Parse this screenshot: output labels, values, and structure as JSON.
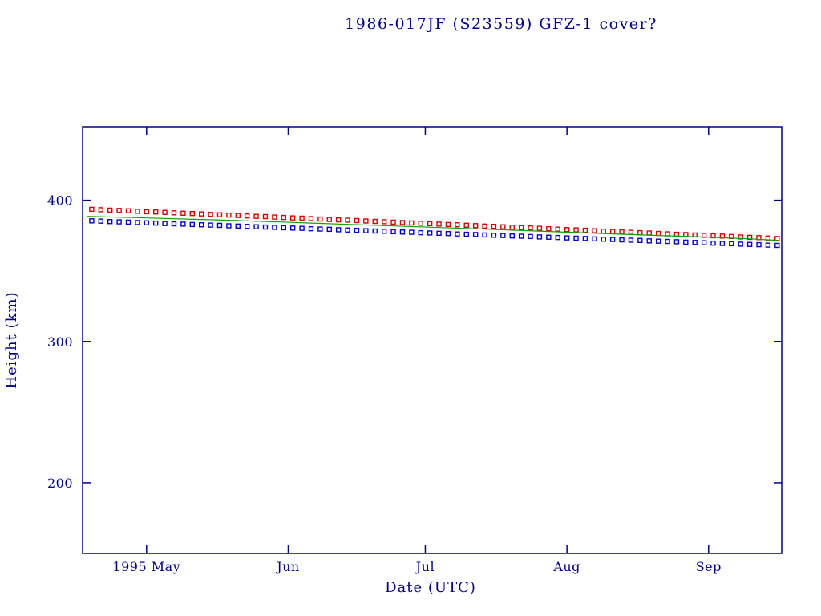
{
  "page": {
    "background": "#ffffff"
  },
  "chart_data": {
    "type": "scatter",
    "title": "1986-017JF (S23559) GFZ-1 cover?",
    "xlabel": "Date (UTC)",
    "ylabel": "Height (km)",
    "x_unit": "days since 1995-04-17",
    "xlim": [
      0,
      153
    ],
    "ylim": [
      150,
      452
    ],
    "grid": false,
    "legend": false,
    "frame_color": "#00008b",
    "text_color": "#00008b",
    "x_ticks": [
      {
        "v": 14,
        "label": "1995 May"
      },
      {
        "v": 45,
        "label": "Jun"
      },
      {
        "v": 75,
        "label": "Jul"
      },
      {
        "v": 106,
        "label": "Aug"
      },
      {
        "v": 137,
        "label": "Sep"
      }
    ],
    "y_ticks": [
      {
        "v": 200,
        "label": "200"
      },
      {
        "v": 300,
        "label": "300"
      },
      {
        "v": 400,
        "label": "400"
      }
    ],
    "series": [
      {
        "name": "red-squares-upper-height",
        "style": "scatter",
        "marker": "square",
        "color": "#dd0000",
        "points": [
          [
            2,
            393.6
          ],
          [
            4,
            393.3
          ],
          [
            6,
            393.0
          ],
          [
            8,
            392.8
          ],
          [
            10,
            392.5
          ],
          [
            12,
            392.2
          ],
          [
            14,
            391.9
          ],
          [
            16,
            391.7
          ],
          [
            18,
            391.4
          ],
          [
            20,
            391.1
          ],
          [
            22,
            390.8
          ],
          [
            24,
            390.6
          ],
          [
            26,
            390.3
          ],
          [
            28,
            390.0
          ],
          [
            30,
            389.7
          ],
          [
            32,
            389.5
          ],
          [
            34,
            389.2
          ],
          [
            36,
            388.9
          ],
          [
            38,
            388.6
          ],
          [
            40,
            388.4
          ],
          [
            42,
            388.1
          ],
          [
            44,
            387.8
          ],
          [
            46,
            387.5
          ],
          [
            48,
            387.3
          ],
          [
            50,
            387.0
          ],
          [
            52,
            386.7
          ],
          [
            54,
            386.4
          ],
          [
            56,
            386.1
          ],
          [
            58,
            385.9
          ],
          [
            60,
            385.6
          ],
          [
            62,
            385.3
          ],
          [
            64,
            385.0
          ],
          [
            66,
            384.8
          ],
          [
            68,
            384.5
          ],
          [
            70,
            384.2
          ],
          [
            72,
            383.9
          ],
          [
            74,
            383.7
          ],
          [
            76,
            383.4
          ],
          [
            78,
            383.1
          ],
          [
            80,
            382.8
          ],
          [
            82,
            382.6
          ],
          [
            84,
            382.3
          ],
          [
            86,
            382.0
          ],
          [
            88,
            381.7
          ],
          [
            90,
            381.5
          ],
          [
            92,
            381.2
          ],
          [
            94,
            380.9
          ],
          [
            96,
            380.6
          ],
          [
            98,
            380.4
          ],
          [
            100,
            380.1
          ],
          [
            102,
            379.8
          ],
          [
            104,
            379.5
          ],
          [
            106,
            379.2
          ],
          [
            108,
            379.0
          ],
          [
            110,
            378.7
          ],
          [
            112,
            378.4
          ],
          [
            114,
            378.1
          ],
          [
            116,
            377.9
          ],
          [
            118,
            377.6
          ],
          [
            120,
            377.3
          ],
          [
            122,
            377.0
          ],
          [
            124,
            376.8
          ],
          [
            126,
            376.5
          ],
          [
            128,
            376.2
          ],
          [
            130,
            375.9
          ],
          [
            132,
            375.7
          ],
          [
            134,
            375.4
          ],
          [
            136,
            375.1
          ],
          [
            138,
            374.8
          ],
          [
            140,
            374.6
          ],
          [
            142,
            374.3
          ],
          [
            144,
            374.0
          ],
          [
            146,
            373.7
          ],
          [
            148,
            373.5
          ],
          [
            150,
            373.2
          ],
          [
            152,
            372.9
          ]
        ]
      },
      {
        "name": "blue-squares-lower-height",
        "style": "scatter",
        "marker": "square",
        "color": "#0000dd",
        "points": [
          [
            2,
            385.4
          ],
          [
            4,
            385.2
          ],
          [
            6,
            384.9
          ],
          [
            8,
            384.7
          ],
          [
            10,
            384.5
          ],
          [
            12,
            384.2
          ],
          [
            14,
            384.0
          ],
          [
            16,
            383.8
          ],
          [
            18,
            383.5
          ],
          [
            20,
            383.3
          ],
          [
            22,
            383.1
          ],
          [
            24,
            382.8
          ],
          [
            26,
            382.6
          ],
          [
            28,
            382.4
          ],
          [
            30,
            382.2
          ],
          [
            32,
            381.9
          ],
          [
            34,
            381.7
          ],
          [
            36,
            381.5
          ],
          [
            38,
            381.2
          ],
          [
            40,
            381.0
          ],
          [
            42,
            380.8
          ],
          [
            44,
            380.5
          ],
          [
            46,
            380.3
          ],
          [
            48,
            380.1
          ],
          [
            50,
            379.8
          ],
          [
            52,
            379.6
          ],
          [
            54,
            379.4
          ],
          [
            56,
            379.1
          ],
          [
            58,
            378.9
          ],
          [
            60,
            378.7
          ],
          [
            62,
            378.4
          ],
          [
            64,
            378.2
          ],
          [
            66,
            378.0
          ],
          [
            68,
            377.7
          ],
          [
            70,
            377.5
          ],
          [
            72,
            377.3
          ],
          [
            74,
            377.0
          ],
          [
            76,
            376.8
          ],
          [
            78,
            376.6
          ],
          [
            80,
            376.4
          ],
          [
            82,
            376.1
          ],
          [
            84,
            375.9
          ],
          [
            86,
            375.7
          ],
          [
            88,
            375.4
          ],
          [
            90,
            375.2
          ],
          [
            92,
            375.0
          ],
          [
            94,
            374.7
          ],
          [
            96,
            374.5
          ],
          [
            98,
            374.3
          ],
          [
            100,
            374.0
          ],
          [
            102,
            373.8
          ],
          [
            104,
            373.6
          ],
          [
            106,
            373.3
          ],
          [
            108,
            373.1
          ],
          [
            110,
            372.9
          ],
          [
            112,
            372.6
          ],
          [
            114,
            372.4
          ],
          [
            116,
            372.2
          ],
          [
            118,
            371.9
          ],
          [
            120,
            371.7
          ],
          [
            122,
            371.5
          ],
          [
            124,
            371.2
          ],
          [
            126,
            371.0
          ],
          [
            128,
            370.8
          ],
          [
            130,
            370.6
          ],
          [
            132,
            370.3
          ],
          [
            134,
            370.1
          ],
          [
            136,
            369.9
          ],
          [
            138,
            369.6
          ],
          [
            140,
            369.4
          ],
          [
            142,
            369.2
          ],
          [
            144,
            368.9
          ],
          [
            146,
            368.7
          ],
          [
            148,
            368.5
          ],
          [
            150,
            368.2
          ],
          [
            152,
            368.0
          ]
        ]
      },
      {
        "name": "green-fit-line",
        "style": "line",
        "marker": "none",
        "color": "#00a800",
        "points": [
          [
            1,
            388.6
          ],
          [
            15,
            387.4
          ],
          [
            30,
            386.0
          ],
          [
            45,
            384.4
          ],
          [
            60,
            382.7
          ],
          [
            75,
            381.0
          ],
          [
            90,
            379.3
          ],
          [
            105,
            377.5
          ],
          [
            120,
            375.7
          ],
          [
            135,
            374.0
          ],
          [
            145,
            372.8
          ],
          [
            152,
            371.6
          ]
        ]
      }
    ]
  }
}
